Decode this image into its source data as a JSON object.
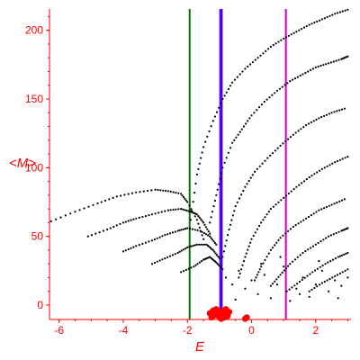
{
  "chart_data": {
    "type": "scatter",
    "xlabel": "E",
    "ylabel": "<M>",
    "xlim": [
      -6.3,
      3.1
    ],
    "ylim": [
      -10.5,
      215.5
    ],
    "x_ticks": [
      -6,
      -4,
      -2,
      0,
      2
    ],
    "y_ticks": [
      0,
      50,
      100,
      150,
      200
    ],
    "x_tick_labels": [
      "-6",
      "-4",
      "-2",
      "0",
      "2"
    ],
    "y_tick_labels": [
      "0",
      "50",
      "100",
      "150",
      "200"
    ],
    "grid": false,
    "legend": "none",
    "colors": {
      "axis": "#ff0000",
      "points": "#000000",
      "cluster": "#ff0000"
    },
    "vertical_lines": [
      {
        "x": -1.93,
        "color": "#007700"
      },
      {
        "x": -0.98,
        "color": "#7a00ff"
      },
      {
        "x": -0.93,
        "color": "#3300ff"
      },
      {
        "x": 1.07,
        "color": "#cc00cc"
      }
    ],
    "series": [
      {
        "values": [
          [
            -6.25,
            61
          ],
          [
            -5.5,
            68
          ],
          [
            -4.8,
            74
          ],
          [
            -4.2,
            79
          ],
          [
            -3.6,
            82
          ],
          [
            -3.0,
            84
          ],
          [
            -2.6,
            83
          ],
          [
            -2.2,
            81
          ],
          [
            -2.0,
            75
          ],
          [
            -1.7,
            62
          ],
          [
            -1.5,
            48
          ]
        ]
      },
      {
        "values": [
          [
            -5.1,
            50
          ],
          [
            -4.5,
            55
          ],
          [
            -4.0,
            60
          ],
          [
            -3.6,
            63
          ],
          [
            -3.1,
            66
          ],
          [
            -2.6,
            69
          ],
          [
            -2.2,
            70
          ],
          [
            -1.9,
            68
          ],
          [
            -1.7,
            66
          ],
          [
            -1.5,
            60
          ],
          [
            -1.3,
            52
          ]
        ]
      },
      {
        "values": [
          [
            -4.0,
            39
          ],
          [
            -3.6,
            43
          ],
          [
            -3.1,
            47
          ],
          [
            -2.7,
            51
          ],
          [
            -2.3,
            54
          ],
          [
            -2.0,
            56
          ],
          [
            -1.6,
            54
          ],
          [
            -1.3,
            50
          ],
          [
            -1.1,
            44
          ]
        ]
      },
      {
        "values": [
          [
            -3.1,
            30
          ],
          [
            -2.7,
            34
          ],
          [
            -2.3,
            38
          ],
          [
            -2.0,
            42
          ],
          [
            -1.7,
            44
          ],
          [
            -1.4,
            44
          ],
          [
            -1.2,
            40
          ],
          [
            -1.0,
            34
          ]
        ]
      },
      {
        "values": [
          [
            -2.2,
            24
          ],
          [
            -1.8,
            28
          ],
          [
            -1.5,
            33
          ],
          [
            -1.3,
            35
          ],
          [
            -1.1,
            31
          ],
          [
            -0.9,
            26
          ]
        ]
      },
      {
        "values": [
          [
            -1.9,
            62
          ],
          [
            -1.7,
            95
          ],
          [
            -1.5,
            115
          ],
          [
            -1.2,
            134
          ],
          [
            -0.9,
            150
          ],
          [
            -0.6,
            162
          ],
          [
            -0.2,
            172
          ],
          [
            0.2,
            180
          ],
          [
            0.6,
            188
          ],
          [
            1.0,
            194
          ],
          [
            1.4,
            199
          ],
          [
            1.8,
            204
          ],
          [
            2.2,
            208
          ],
          [
            2.6,
            212
          ],
          [
            3.0,
            215
          ]
        ]
      },
      {
        "values": [
          [
            -1.3,
            60
          ],
          [
            -1.1,
            80
          ],
          [
            -0.9,
            100
          ],
          [
            -0.6,
            118
          ],
          [
            -0.3,
            128
          ],
          [
            0.0,
            138
          ],
          [
            0.4,
            148
          ],
          [
            0.8,
            156
          ],
          [
            1.2,
            163
          ],
          [
            1.6,
            168
          ],
          [
            2.0,
            173
          ],
          [
            2.4,
            176
          ],
          [
            2.8,
            179
          ],
          [
            3.0,
            181
          ]
        ]
      },
      {
        "values": [
          [
            -0.9,
            35
          ],
          [
            -0.7,
            55
          ],
          [
            -0.5,
            72
          ],
          [
            -0.2,
            86
          ],
          [
            0.1,
            97
          ],
          [
            0.5,
            107
          ],
          [
            0.9,
            116
          ],
          [
            1.3,
            124
          ],
          [
            1.7,
            131
          ],
          [
            2.1,
            136
          ],
          [
            2.5,
            140
          ],
          [
            2.9,
            143
          ]
        ]
      },
      {
        "values": [
          [
            -0.4,
            20
          ],
          [
            -0.2,
            35
          ],
          [
            0.0,
            48
          ],
          [
            0.3,
            60
          ],
          [
            0.6,
            70
          ],
          [
            1.0,
            78
          ],
          [
            1.4,
            86
          ],
          [
            1.8,
            93
          ],
          [
            2.2,
            99
          ],
          [
            2.6,
            104
          ],
          [
            3.0,
            108
          ]
        ]
      },
      {
        "values": [
          [
            0.1,
            18
          ],
          [
            0.3,
            28
          ],
          [
            0.6,
            40
          ],
          [
            0.9,
            49
          ],
          [
            1.3,
            57
          ],
          [
            1.7,
            63
          ],
          [
            2.1,
            69
          ],
          [
            2.5,
            73
          ],
          [
            2.9,
            77
          ]
        ]
      },
      {
        "values": [
          [
            0.6,
            14
          ],
          [
            0.9,
            22
          ],
          [
            1.2,
            30
          ],
          [
            1.6,
            38
          ],
          [
            2.0,
            44
          ],
          [
            2.4,
            50
          ],
          [
            2.8,
            54
          ],
          [
            3.0,
            56
          ]
        ]
      },
      {
        "values": [
          [
            1.1,
            10
          ],
          [
            1.5,
            17
          ],
          [
            1.9,
            24
          ],
          [
            2.3,
            30
          ],
          [
            2.7,
            35
          ],
          [
            3.0,
            38
          ]
        ]
      },
      {
        "values": [
          [
            1.8,
            10
          ],
          [
            2.2,
            16
          ],
          [
            2.6,
            21
          ],
          [
            3.0,
            26
          ]
        ]
      },
      {
        "values": [
          [
            -0.8,
            20
          ],
          [
            -0.6,
            15
          ],
          [
            -0.4,
            25
          ],
          [
            -0.2,
            12
          ],
          [
            0.0,
            18
          ],
          [
            0.2,
            8
          ],
          [
            0.4,
            22
          ],
          [
            0.6,
            5
          ],
          [
            0.8,
            15
          ],
          [
            1.0,
            28
          ],
          [
            1.2,
            3
          ],
          [
            1.4,
            12
          ],
          [
            1.6,
            20
          ],
          [
            1.8,
            6
          ],
          [
            2.0,
            15
          ],
          [
            2.2,
            25
          ],
          [
            2.4,
            10
          ],
          [
            2.6,
            18
          ],
          [
            2.8,
            14
          ],
          [
            3.0,
            20
          ],
          [
            -0.5,
            4
          ],
          [
            0.3,
            30
          ],
          [
            0.9,
            35
          ],
          [
            1.5,
            8
          ],
          [
            2.1,
            32
          ],
          [
            2.7,
            5
          ]
        ]
      }
    ],
    "cluster": [
      [
        -1.3,
        -6
      ],
      [
        -1.2,
        -4
      ],
      [
        -1.2,
        -8
      ],
      [
        -1.1,
        -3
      ],
      [
        -1.1,
        -7
      ],
      [
        -1.0,
        -5
      ],
      [
        -1.0,
        -9
      ],
      [
        -0.9,
        -4
      ],
      [
        -0.9,
        -7
      ],
      [
        -0.8,
        -6
      ],
      [
        -0.8,
        -3
      ],
      [
        -0.75,
        -8
      ],
      [
        -0.7,
        -5
      ],
      [
        -1.25,
        -9
      ],
      [
        -0.95,
        -10
      ],
      [
        -0.85,
        -9
      ],
      [
        -0.15,
        -9
      ],
      [
        -0.2,
        -10
      ]
    ]
  }
}
